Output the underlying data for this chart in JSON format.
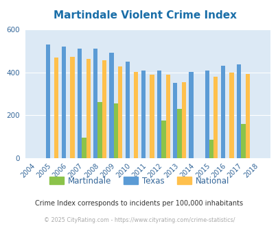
{
  "title": "Martindale Violent Crime Index",
  "years": [
    2004,
    2005,
    2006,
    2007,
    2008,
    2009,
    2010,
    2011,
    2012,
    2013,
    2014,
    2015,
    2016,
    2017,
    2018
  ],
  "martindale": [
    null,
    null,
    null,
    95,
    260,
    255,
    null,
    null,
    175,
    230,
    null,
    85,
    null,
    160,
    null
  ],
  "texas": [
    null,
    530,
    520,
    510,
    510,
    490,
    450,
    408,
    408,
    350,
    402,
    408,
    432,
    438,
    null
  ],
  "national": [
    null,
    468,
    472,
    462,
    455,
    428,
    403,
    388,
    388,
    355,
    null,
    378,
    398,
    393,
    null
  ],
  "color_martindale": "#8bc34a",
  "color_texas": "#5b9bd5",
  "color_national": "#ffc04c",
  "bg_color": "#dce9f5",
  "ylim": [
    0,
    600
  ],
  "yticks": [
    0,
    200,
    400,
    600
  ],
  "subtitle": "Crime Index corresponds to incidents per 100,000 inhabitants",
  "footer": "© 2025 CityRating.com - https://www.cityrating.com/crime-statistics/",
  "bar_width": 0.27
}
